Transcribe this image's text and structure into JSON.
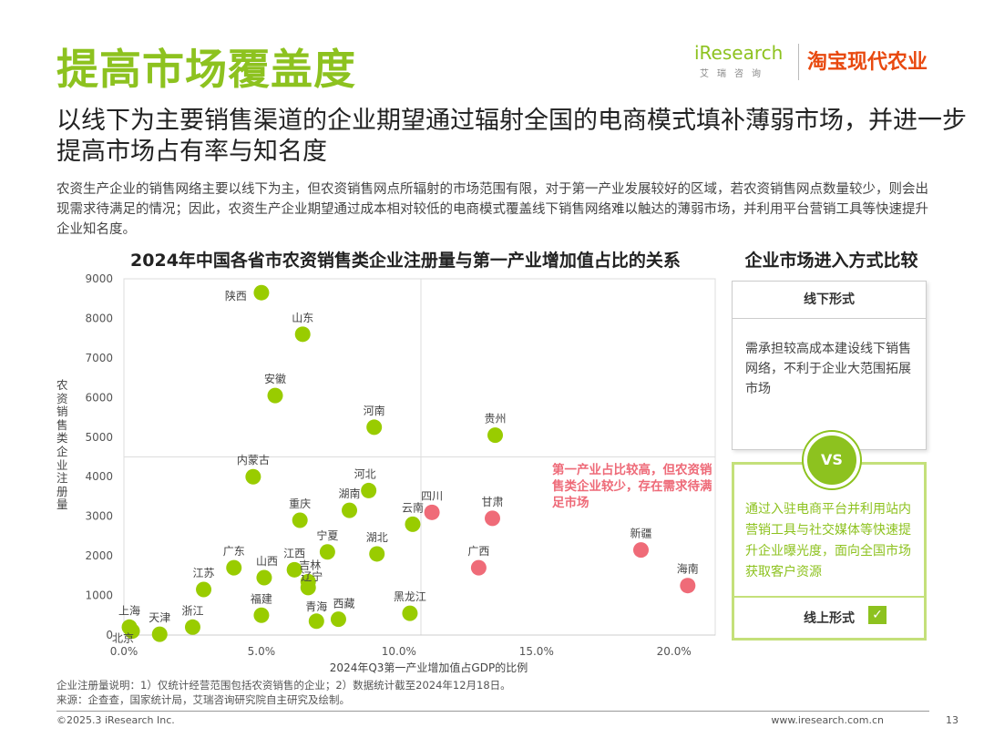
{
  "title": "提高市场覆盖度",
  "subtitle": "以线下为主要销售渠道的企业期望通过辐射全国的电商模式填补薄弱市场，并进一步提高市场占有率与知名度",
  "body_text": "农资生产企业的销售网络主要以线下为主，但农资销售网点所辐射的市场范围有限，对于第一产业发展较好的区域，若农资销售网点数量较少，则会出现需求待满足的情况；因此，农资生产企业期望通过成本相对较低的电商模式覆盖线下销售网络难以触达的薄弱市场，并利用平台营销工具等快速提升企业知名度。",
  "brand": {
    "iresearch": "iResearch",
    "iresearch_cn": "艾瑞咨询",
    "taobao": "淘宝现代农业"
  },
  "panel": {
    "title": "企业市场进入方式比较",
    "offline_title": "线下形式",
    "offline_desc": "需承担较高成本建设线下销售网络，不利于企业大范围拓展市场",
    "vs": "VS",
    "online_desc": "通过入驻电商平台并利用站内营销工具与社交媒体等快速提升企业曝光度，面向全国市场获取客户资源",
    "online_title": "线上形式",
    "check_icon": "✓"
  },
  "annotation": "第一产业占比较高，但农资销售类企业较少，存在需求待满足市场",
  "notes": {
    "note1": "企业注册量说明：1）仅统计经营范围包括农资销售的企业；2）数据统计截至2024年12月18日。",
    "note2": "来源：企查查，国家统计局，艾瑞咨询研究院自主研究及绘制。"
  },
  "footer": {
    "copyright": "©2025.3 iResearch Inc.",
    "url": "www.iresearch.com.cn",
    "page": "13"
  },
  "colors": {
    "accent_green": "#8dc21f",
    "point_green": "#99cc00",
    "point_red": "#ef6b78"
  },
  "chart_data": {
    "type": "scatter",
    "title": "2024年中国各省市农资销售类企业注册量与第一产业增加值占比的关系",
    "xlabel": "2024年Q3第一产业增加值占GDP的比例",
    "ylabel": "农资销售类企业注册量",
    "xlim": [
      0,
      21.5
    ],
    "ylim": [
      0,
      9000
    ],
    "x_ticks": [
      "0.0%",
      "5.0%",
      "10.0%",
      "15.0%",
      "20.0%"
    ],
    "x_tick_values": [
      0,
      5,
      10,
      15,
      20
    ],
    "y_ticks": [
      "0",
      "1000",
      "2000",
      "3000",
      "4000",
      "5000",
      "6000",
      "7000",
      "8000",
      "9000"
    ],
    "y_tick_values": [
      0,
      1000,
      2000,
      3000,
      4000,
      5000,
      6000,
      7000,
      8000,
      9000
    ],
    "reference_lines": {
      "x": 10.8,
      "y": 4500
    },
    "series": [
      {
        "name": "green",
        "points": [
          {
            "label": "陕西",
            "x": 5.0,
            "y": 8650
          },
          {
            "label": "山东",
            "x": 6.5,
            "y": 7600
          },
          {
            "label": "安徽",
            "x": 5.5,
            "y": 6050
          },
          {
            "label": "河南",
            "x": 9.1,
            "y": 5250
          },
          {
            "label": "贵州",
            "x": 13.5,
            "y": 5050
          },
          {
            "label": "内蒙古",
            "x": 4.7,
            "y": 4000
          },
          {
            "label": "河北",
            "x": 8.9,
            "y": 3650
          },
          {
            "label": "湖南",
            "x": 8.2,
            "y": 3150
          },
          {
            "label": "重庆",
            "x": 6.4,
            "y": 2900
          },
          {
            "label": "云南",
            "x": 10.5,
            "y": 2800
          },
          {
            "label": "宁夏",
            "x": 7.4,
            "y": 2100
          },
          {
            "label": "湖北",
            "x": 9.2,
            "y": 2050
          },
          {
            "label": "广东",
            "x": 4.0,
            "y": 1700
          },
          {
            "label": "江西",
            "x": 6.2,
            "y": 1650
          },
          {
            "label": "山西",
            "x": 5.1,
            "y": 1450
          },
          {
            "label": "吉林",
            "x": 6.7,
            "y": 1350
          },
          {
            "label": "江苏",
            "x": 2.9,
            "y": 1150
          },
          {
            "label": "辽宁",
            "x": 6.7,
            "y": 1200
          },
          {
            "label": "福建",
            "x": 5.0,
            "y": 500
          },
          {
            "label": "黑龙江",
            "x": 10.4,
            "y": 550
          },
          {
            "label": "青海",
            "x": 7.0,
            "y": 350
          },
          {
            "label": "西藏",
            "x": 7.8,
            "y": 400
          },
          {
            "label": "上海",
            "x": 0.2,
            "y": 200
          },
          {
            "label": "浙江",
            "x": 2.5,
            "y": 200
          },
          {
            "label": "天津",
            "x": 1.3,
            "y": 20
          },
          {
            "label": "北京",
            "x": 0.3,
            "y": 100
          }
        ]
      },
      {
        "name": "red",
        "points": [
          {
            "label": "四川",
            "x": 11.2,
            "y": 3100
          },
          {
            "label": "甘肃",
            "x": 13.4,
            "y": 2950
          },
          {
            "label": "新疆",
            "x": 18.8,
            "y": 2150
          },
          {
            "label": "广西",
            "x": 12.9,
            "y": 1700
          },
          {
            "label": "海南",
            "x": 20.5,
            "y": 1250
          }
        ]
      }
    ]
  }
}
